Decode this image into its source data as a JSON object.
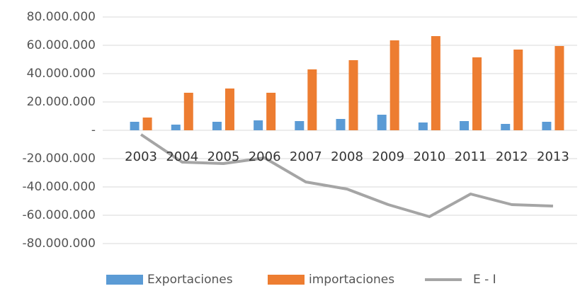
{
  "chart_data": {
    "type": "bar-line",
    "categories": [
      "2003",
      "2004",
      "2005",
      "2006",
      "2007",
      "2008",
      "2009",
      "2010",
      "2011",
      "2012",
      "2013"
    ],
    "series": [
      {
        "name": "Exportaciones",
        "type": "bar",
        "color": "#5b9bd5",
        "values": [
          6000000,
          4000000,
          6000000,
          7000000,
          6500000,
          8000000,
          11000000,
          5500000,
          6500000,
          4500000,
          6000000
        ]
      },
      {
        "name": "importaciones",
        "type": "bar",
        "color": "#ed7d31",
        "values": [
          9000000,
          26500000,
          29500000,
          26500000,
          43000000,
          49500000,
          63500000,
          66500000,
          51500000,
          57000000,
          59500000
        ]
      },
      {
        "name": "E - I",
        "type": "line",
        "color": "#a5a5a5",
        "values": [
          -3000000,
          -22500000,
          -23500000,
          -19500000,
          -36500000,
          -41500000,
          -52500000,
          -61000000,
          -45000000,
          -52500000,
          -53500000
        ]
      }
    ],
    "ylim": [
      -80000000,
      80000000
    ],
    "yticks": [
      {
        "value": -80000000,
        "label": "-80.000.000"
      },
      {
        "value": -60000000,
        "label": "-60.000.000"
      },
      {
        "value": -40000000,
        "label": "-40.000.000"
      },
      {
        "value": -20000000,
        "label": "-20.000.000"
      },
      {
        "value": 0,
        "label": "-"
      },
      {
        "value": 20000000,
        "label": "20.000.000"
      },
      {
        "value": 40000000,
        "label": "40.000.000"
      },
      {
        "value": 60000000,
        "label": "60.000.000"
      },
      {
        "value": 80000000,
        "label": "80.000.000"
      }
    ],
    "grid": true,
    "legend": "bottom"
  }
}
